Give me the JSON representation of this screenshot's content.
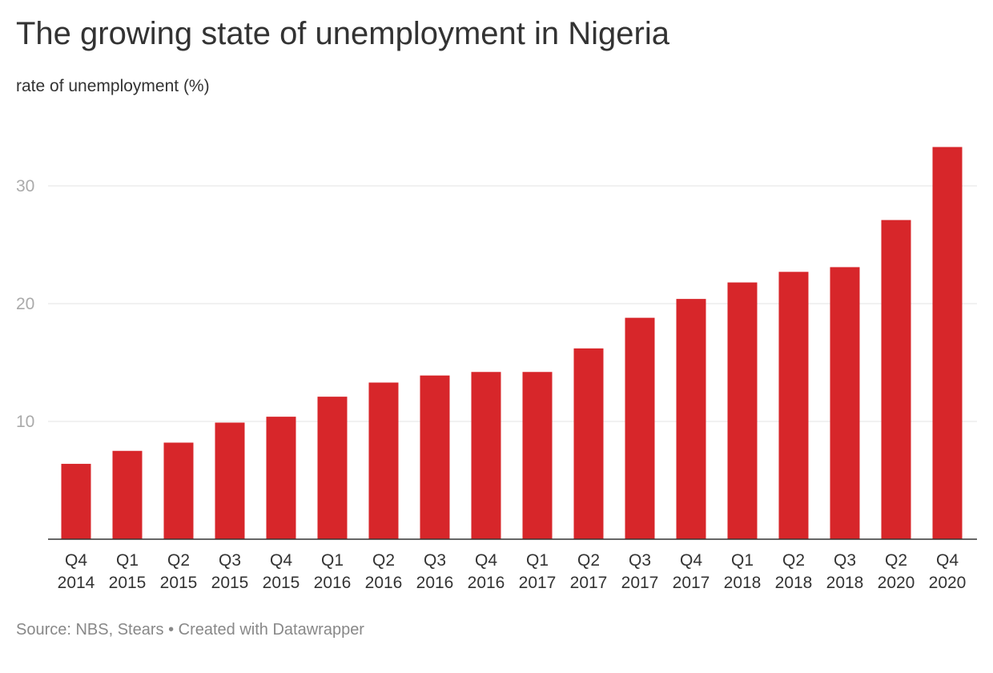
{
  "title": "The growing state of unemployment in Nigeria",
  "subtitle": "rate of unemployment (%)",
  "footer": "Source: NBS, Stears • Created with Datawrapper",
  "colors": {
    "bar": "#d7262a",
    "grid": "#e3e3e3",
    "axis": "#333333",
    "tick_y": "#aaaaaa",
    "tick_x": "#333333"
  },
  "chart_data": {
    "type": "bar",
    "categories": [
      [
        "Q4",
        "2014"
      ],
      [
        "Q1",
        "2015"
      ],
      [
        "Q2",
        "2015"
      ],
      [
        "Q3",
        "2015"
      ],
      [
        "Q4",
        "2015"
      ],
      [
        "Q1",
        "2016"
      ],
      [
        "Q2",
        "2016"
      ],
      [
        "Q3",
        "2016"
      ],
      [
        "Q4",
        "2016"
      ],
      [
        "Q1",
        "2017"
      ],
      [
        "Q2",
        "2017"
      ],
      [
        "Q3",
        "2017"
      ],
      [
        "Q4",
        "2017"
      ],
      [
        "Q1",
        "2018"
      ],
      [
        "Q2",
        "2018"
      ],
      [
        "Q3",
        "2018"
      ],
      [
        "Q2",
        "2020"
      ],
      [
        "Q4",
        "2020"
      ]
    ],
    "values": [
      6.4,
      7.5,
      8.2,
      9.9,
      10.4,
      12.1,
      13.3,
      13.9,
      14.2,
      14.2,
      16.2,
      18.8,
      20.4,
      21.8,
      22.7,
      23.1,
      27.1,
      33.3
    ],
    "yticks": [
      10,
      20,
      30
    ],
    "ylim": [
      0,
      35
    ],
    "grid": true,
    "legend": "none"
  }
}
